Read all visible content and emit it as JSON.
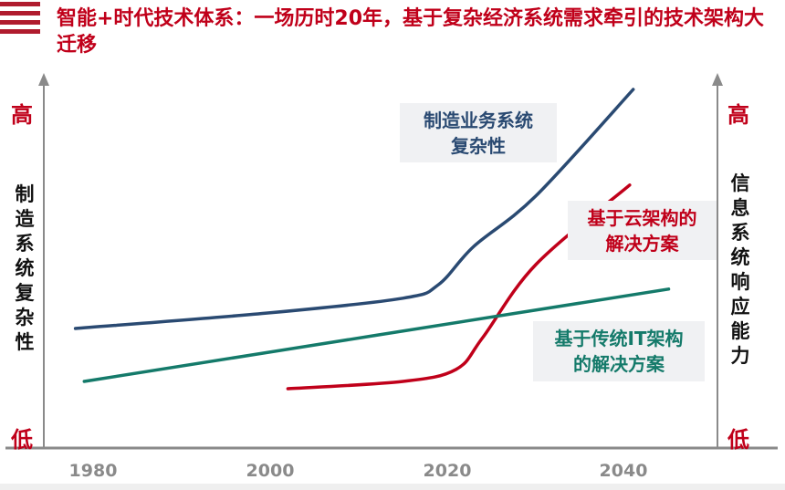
{
  "title": "智能+时代技术体系：一场历时20年，基于复杂经济系统需求牵引的技术架构大迁移",
  "left_axis": {
    "label": "制造系统复杂性",
    "high": "高",
    "low": "低"
  },
  "right_axis": {
    "label": "信息系统响应能力",
    "high": "高",
    "low": "低"
  },
  "colors": {
    "title": "#c0001a",
    "blue": "#2a4a72",
    "red": "#c0001a",
    "green": "#147a6a",
    "axis": "#8a8a8a"
  },
  "chart_data": {
    "type": "line",
    "x_ticks": [
      "1980",
      "2000",
      "2020",
      "2040"
    ],
    "xlim": [
      1975,
      2052
    ],
    "ylim": [
      0,
      100
    ],
    "grid": false,
    "series": [
      {
        "name": "制造业务系统复杂性",
        "label_lines": [
          "制造业务系统",
          "复杂性"
        ],
        "color": "#2a4a72",
        "x": [
          1978,
          2000,
          2015,
          2019,
          2023,
          2030,
          2041
        ],
        "y": [
          32.5,
          36.8,
          40.8,
          44.5,
          55,
          68.8,
          98
        ]
      },
      {
        "name": "基于云架构的解决方案",
        "label_lines": [
          "基于云架构的",
          "解决方案"
        ],
        "color": "#c0001a",
        "x": [
          2002,
          2015,
          2021,
          2024,
          2030,
          2040.6
        ],
        "y": [
          16,
          18,
          21.3,
          30,
          50,
          71.8
        ]
      },
      {
        "name": "基于传统IT架构的解决方案",
        "label_lines": [
          "基于传统IT架构",
          "的解决方案"
        ],
        "color": "#147a6a",
        "x": [
          1979,
          2045
        ],
        "y": [
          18,
          43.3
        ]
      }
    ]
  }
}
